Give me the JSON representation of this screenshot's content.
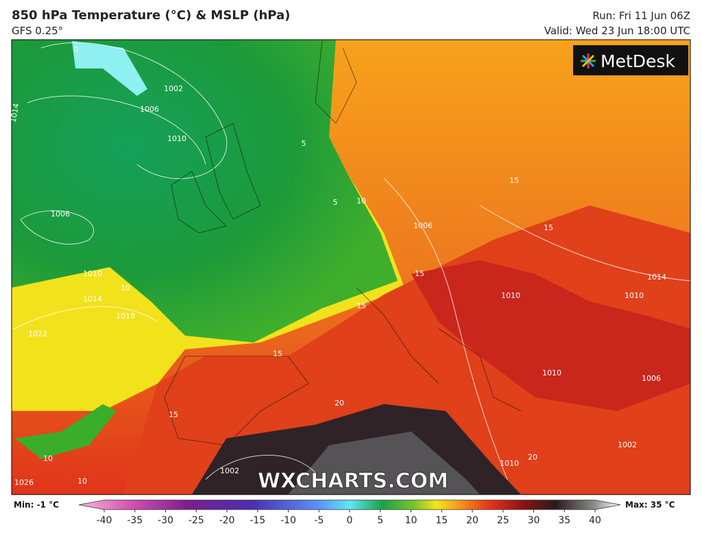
{
  "header": {
    "title": "850 hPa Temperature (°C) & MSLP (hPa)",
    "model": "GFS 0.25°",
    "run": "Run: Fri 11 Jun 06Z",
    "valid": "Valid: Wed 23 Jun 18:00 UTC"
  },
  "logo": "MetDesk",
  "watermark": "WXCHARTS.COM",
  "legend": {
    "min": "Min: -1 °C",
    "max": "Max: 35 °C",
    "ticks": [
      -40,
      -35,
      -30,
      -25,
      -20,
      -15,
      -10,
      -5,
      0,
      5,
      10,
      15,
      20,
      25,
      30,
      35,
      40
    ]
  },
  "contour_labels": [
    "0",
    "1002",
    "1006",
    "1010",
    "1014",
    "1006",
    "1010",
    "1014",
    "1018",
    "1022",
    "1026",
    "5",
    "5",
    "10",
    "10",
    "15",
    "15",
    "15",
    "15",
    "15",
    "15",
    "10",
    "10",
    "20",
    "20",
    "1002",
    "1010",
    "1006",
    "1010",
    "1014",
    "1006",
    "1010",
    "1002",
    "1010"
  ]
}
